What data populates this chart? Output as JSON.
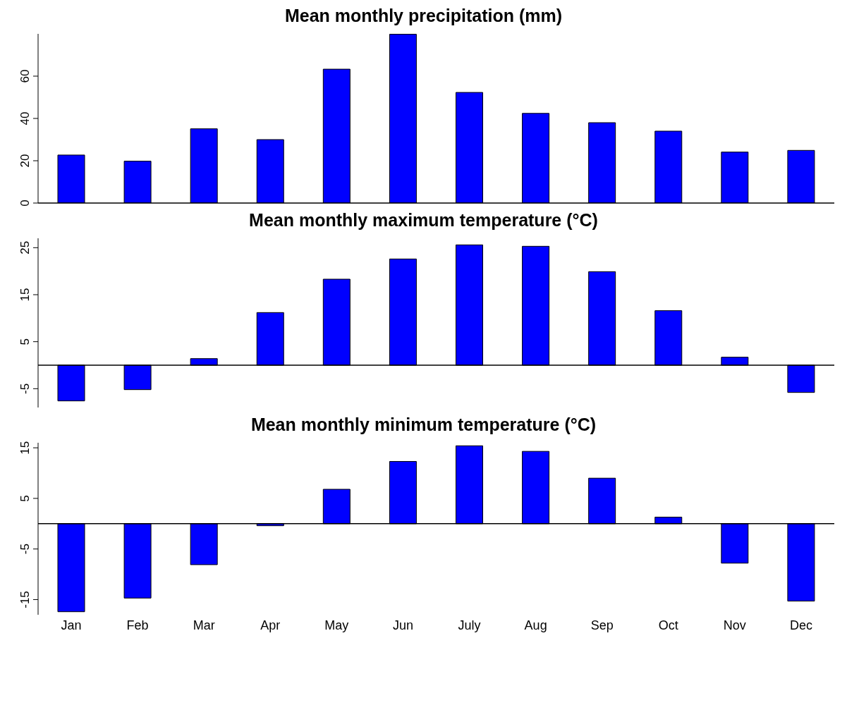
{
  "chart_data": [
    {
      "type": "bar",
      "title": "Mean monthly precipitation (mm)",
      "categories": [
        null,
        null,
        null,
        null,
        null,
        null,
        null,
        null,
        null,
        null,
        null,
        null
      ],
      "values": [
        22.7,
        19.8,
        35.1,
        30,
        63.3,
        79.8,
        52.3,
        42.4,
        38,
        34,
        24.1,
        24.9
      ],
      "color": "#0000ff",
      "ylim": [
        0,
        80
      ],
      "yticks": [
        0,
        20,
        40,
        60
      ],
      "tick_labels": "y",
      "ref_lines": [
        {
          "axis": "y",
          "value": 0
        }
      ],
      "grid": false,
      "legend": false
    },
    {
      "type": "bar",
      "title": "Mean monthly maximum temperature (°C)",
      "categories": [
        null,
        null,
        null,
        null,
        null,
        null,
        null,
        null,
        null,
        null,
        null,
        null
      ],
      "values": [
        -7.6,
        -5.2,
        1.4,
        11.2,
        18.3,
        22.6,
        25.6,
        25.3,
        19.9,
        11.6,
        1.7,
        -5.8
      ],
      "color": "#0000ff",
      "ylim": [
        -9,
        27
      ],
      "yticks": [
        -5,
        5,
        15,
        25
      ],
      "tick_labels": "y",
      "ref_lines": [
        {
          "axis": "y",
          "value": 0
        }
      ],
      "grid": false,
      "legend": false
    },
    {
      "type": "bar",
      "title": "Mean monthly minimum temperature (°C)",
      "categories": [
        "Jan",
        "Feb",
        "Mar",
        "Apr",
        "May",
        "Jun",
        "July",
        "Aug",
        "Sep",
        "Oct",
        "Nov",
        "Dec"
      ],
      "values": [
        -17.4,
        -14.7,
        -8.1,
        -0.4,
        6.8,
        12.3,
        15.4,
        14.3,
        9.0,
        1.3,
        -7.8,
        -15.3
      ],
      "color": "#0000ff",
      "ylim": [
        -18,
        16
      ],
      "yticks": [
        -15,
        -5,
        5,
        15
      ],
      "ref_lines": [
        {
          "axis": "y",
          "value": 0
        }
      ],
      "grid": false,
      "legend": false
    }
  ]
}
